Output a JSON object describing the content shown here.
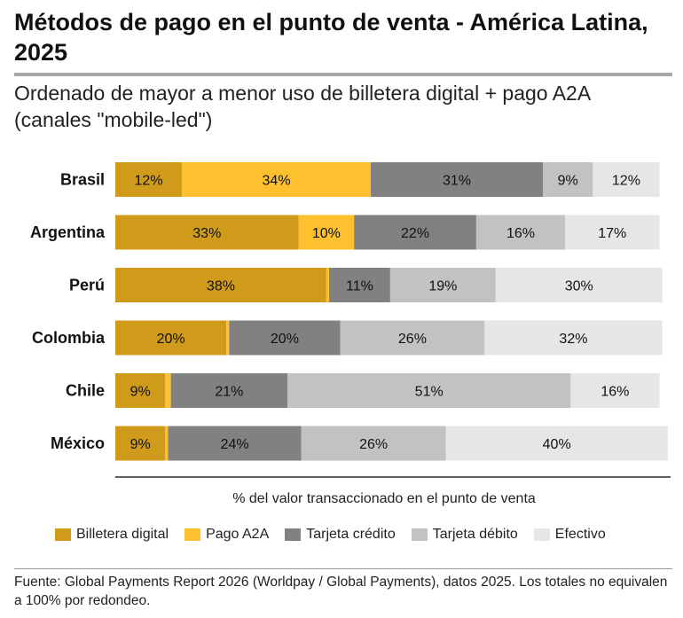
{
  "header": {
    "title": "Métodos de pago en el punto de venta - América Latina, 2025",
    "subtitle": "Ordenado de mayor a menor uso de billetera digital + pago A2A (canales \"mobile-led\")"
  },
  "footer": {
    "source": "Fuente: Global Payments Report 2026 (Worldpay / Global Payments), datos 2025. Los totales no equivalen a 100% por redondeo."
  },
  "chart_data": {
    "type": "bar",
    "orientation": "horizontal",
    "stacked": true,
    "categories": [
      "Brasil",
      "Argentina",
      "Perú",
      "Colombia",
      "Chile",
      "México"
    ],
    "series": [
      {
        "name": "Billetera digital",
        "color": "#d09b1a",
        "values": [
          12,
          33,
          38,
          20,
          9,
          9
        ]
      },
      {
        "name": "Pago A2A",
        "color": "#fdc02f",
        "values": [
          34,
          10,
          0.5,
          0.5,
          1,
          0.5
        ]
      },
      {
        "name": "Tarjeta crédito",
        "color": "#818181",
        "values": [
          31,
          22,
          11,
          20,
          21,
          24
        ]
      },
      {
        "name": "Tarjeta débito",
        "color": "#c2c2c2",
        "values": [
          9,
          16,
          19,
          26,
          51,
          26
        ]
      },
      {
        "name": "Efectivo",
        "color": "#e6e6e6",
        "values": [
          12,
          17,
          30,
          32,
          16,
          40
        ]
      }
    ],
    "data_labels": [
      [
        "12%",
        "34%",
        "31%",
        "9%",
        "12%"
      ],
      [
        "33%",
        "10%",
        "22%",
        "16%",
        "17%"
      ],
      [
        "38%",
        "",
        "11%",
        "19%",
        "30%"
      ],
      [
        "20%",
        "",
        "20%",
        "26%",
        "32%"
      ],
      [
        "9%",
        "",
        "21%",
        "51%",
        "16%"
      ],
      [
        "9%",
        "",
        "24%",
        "26%",
        "40%"
      ]
    ],
    "xlabel": "% del valor transaccionado en el punto de venta",
    "ylabel": "",
    "xlim": [
      0,
      100
    ],
    "grid": false,
    "legend": "bottom"
  }
}
